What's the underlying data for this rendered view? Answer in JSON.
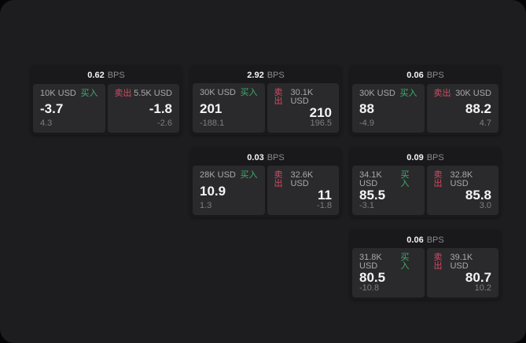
{
  "labels": {
    "bps": "BPS",
    "buy": "买入",
    "sell": "卖出"
  },
  "colors": {
    "accent_green": "#3fae6e",
    "accent_red": "#d14b63",
    "window_bg": "#1d1d1f",
    "card_bg": "#19191b",
    "panel_bg": "#2a2a2c"
  },
  "cards": [
    {
      "col": 1,
      "row": 1,
      "bps": "0.62",
      "buy": {
        "amount": "10K USD",
        "value": "-3.7",
        "delta": "4.3"
      },
      "sell": {
        "amount": "5.5K USD",
        "value": "-1.8",
        "delta": "-2.6"
      }
    },
    {
      "col": 2,
      "row": 1,
      "bps": "2.92",
      "buy": {
        "amount": "30K USD",
        "value": "201",
        "delta": "-188.1"
      },
      "sell": {
        "amount": "30.1K USD",
        "value": "210",
        "delta": "196.5"
      }
    },
    {
      "col": 2,
      "row": 2,
      "bps": "0.03",
      "buy": {
        "amount": "28K USD",
        "value": "10.9",
        "delta": "1.3"
      },
      "sell": {
        "amount": "32.6K USD",
        "value": "11",
        "delta": "-1.8"
      }
    },
    {
      "col": 3,
      "row": 1,
      "bps": "0.06",
      "buy": {
        "amount": "30K USD",
        "value": "88",
        "delta": "-4.9"
      },
      "sell": {
        "amount": "30K USD",
        "value": "88.2",
        "delta": "4.7"
      }
    },
    {
      "col": 3,
      "row": 2,
      "bps": "0.09",
      "buy": {
        "amount": "34.1K USD",
        "value": "85.5",
        "delta": "-3.1"
      },
      "sell": {
        "amount": "32.8K USD",
        "value": "85.8",
        "delta": "3.0"
      }
    },
    {
      "col": 3,
      "row": 3,
      "bps": "0.06",
      "buy": {
        "amount": "31.8K USD",
        "value": "80.5",
        "delta": "-10.8"
      },
      "sell": {
        "amount": "39.1K USD",
        "value": "80.7",
        "delta": "10.2"
      }
    }
  ]
}
